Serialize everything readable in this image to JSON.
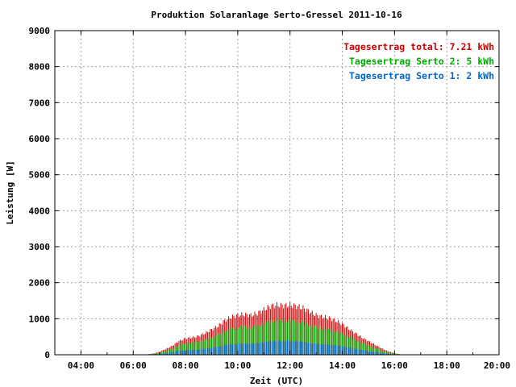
{
  "chart_data": {
    "type": "bar",
    "title": "Produktion Solaranlage Serto-Gressel 2011-10-16",
    "xlabel": "Zeit (UTC)",
    "ylabel": "Leistung [W]",
    "ylim": [
      0,
      9000
    ],
    "xlim": [
      3,
      20
    ],
    "grid": true,
    "legend_position": "top-right",
    "y_ticks": [
      "0",
      "1000",
      "2000",
      "3000",
      "4000",
      "5000",
      "6000",
      "7000",
      "8000",
      "9000"
    ],
    "x_ticks": [
      {
        "value": 4,
        "label": "04:00"
      },
      {
        "value": 6,
        "label": "06:00"
      },
      {
        "value": 8,
        "label": "08:00"
      },
      {
        "value": 10,
        "label": "10:00"
      },
      {
        "value": 12,
        "label": "12:00"
      },
      {
        "value": 14,
        "label": "14:00"
      },
      {
        "value": 16,
        "label": "16:00"
      },
      {
        "value": 18,
        "label": "18:00"
      },
      {
        "value": 20,
        "label": "20:00"
      }
    ],
    "legend": [
      {
        "label": "Tagesertrag total: 7.21 kWh",
        "color": "#cc0000"
      },
      {
        "label": "Tagesertrag Serto 2: 5 kWh",
        "color": "#00aa00"
      },
      {
        "label": "Tagesertrag Serto 1: 2 kWh",
        "color": "#0066cc"
      }
    ],
    "series": [
      {
        "name": "Tagesertrag total",
        "color": "#cc0000",
        "points": [
          [
            6.5,
            10
          ],
          [
            6.75,
            30
          ],
          [
            7.0,
            80
          ],
          [
            7.25,
            160
          ],
          [
            7.5,
            250
          ],
          [
            7.75,
            380
          ],
          [
            8.0,
            450
          ],
          [
            8.25,
            480
          ],
          [
            8.5,
            520
          ],
          [
            8.75,
            600
          ],
          [
            9.0,
            700
          ],
          [
            9.25,
            800
          ],
          [
            9.5,
            950
          ],
          [
            9.75,
            1050
          ],
          [
            10.0,
            1100
          ],
          [
            10.25,
            1120
          ],
          [
            10.5,
            1100
          ],
          [
            10.75,
            1150
          ],
          [
            11.0,
            1250
          ],
          [
            11.25,
            1350
          ],
          [
            11.5,
            1380
          ],
          [
            11.75,
            1370
          ],
          [
            12.0,
            1380
          ],
          [
            12.25,
            1350
          ],
          [
            12.5,
            1300
          ],
          [
            12.75,
            1200
          ],
          [
            13.0,
            1100
          ],
          [
            13.25,
            1050
          ],
          [
            13.5,
            1020
          ],
          [
            13.75,
            950
          ],
          [
            14.0,
            850
          ],
          [
            14.25,
            720
          ],
          [
            14.5,
            600
          ],
          [
            14.75,
            480
          ],
          [
            15.0,
            380
          ],
          [
            15.25,
            280
          ],
          [
            15.5,
            180
          ],
          [
            15.75,
            100
          ],
          [
            16.0,
            40
          ],
          [
            16.25,
            10
          ]
        ]
      },
      {
        "name": "Tagesertrag Serto 2",
        "color": "#00aa00",
        "points": [
          [
            6.5,
            8
          ],
          [
            6.75,
            22
          ],
          [
            7.0,
            55
          ],
          [
            7.25,
            110
          ],
          [
            7.5,
            170
          ],
          [
            7.75,
            260
          ],
          [
            8.0,
            310
          ],
          [
            8.25,
            330
          ],
          [
            8.5,
            360
          ],
          [
            8.75,
            410
          ],
          [
            9.0,
            480
          ],
          [
            9.25,
            550
          ],
          [
            9.5,
            650
          ],
          [
            9.75,
            720
          ],
          [
            10.0,
            760
          ],
          [
            10.25,
            770
          ],
          [
            10.5,
            760
          ],
          [
            10.75,
            790
          ],
          [
            11.0,
            860
          ],
          [
            11.25,
            930
          ],
          [
            11.5,
            950
          ],
          [
            11.75,
            940
          ],
          [
            12.0,
            950
          ],
          [
            12.25,
            930
          ],
          [
            12.5,
            890
          ],
          [
            12.75,
            820
          ],
          [
            13.0,
            760
          ],
          [
            13.25,
            720
          ],
          [
            13.5,
            700
          ],
          [
            13.75,
            650
          ],
          [
            14.0,
            580
          ],
          [
            14.25,
            500
          ],
          [
            14.5,
            410
          ],
          [
            14.75,
            330
          ],
          [
            15.0,
            260
          ],
          [
            15.25,
            190
          ],
          [
            15.5,
            120
          ],
          [
            15.75,
            70
          ],
          [
            16.0,
            28
          ],
          [
            16.25,
            7
          ]
        ]
      },
      {
        "name": "Tagesertrag Serto 1",
        "color": "#0066cc",
        "points": [
          [
            6.5,
            3
          ],
          [
            6.75,
            9
          ],
          [
            7.0,
            22
          ],
          [
            7.25,
            45
          ],
          [
            7.5,
            70
          ],
          [
            7.75,
            105
          ],
          [
            8.0,
            125
          ],
          [
            8.25,
            135
          ],
          [
            8.5,
            145
          ],
          [
            8.75,
            165
          ],
          [
            9.0,
            195
          ],
          [
            9.25,
            220
          ],
          [
            9.5,
            265
          ],
          [
            9.75,
            290
          ],
          [
            10.0,
            305
          ],
          [
            10.25,
            310
          ],
          [
            10.5,
            305
          ],
          [
            10.75,
            320
          ],
          [
            11.0,
            345
          ],
          [
            11.25,
            375
          ],
          [
            11.5,
            385
          ],
          [
            11.75,
            380
          ],
          [
            12.0,
            385
          ],
          [
            12.25,
            375
          ],
          [
            12.5,
            360
          ],
          [
            12.75,
            330
          ],
          [
            13.0,
            305
          ],
          [
            13.25,
            290
          ],
          [
            13.5,
            280
          ],
          [
            13.75,
            260
          ],
          [
            14.0,
            235
          ],
          [
            14.25,
            200
          ],
          [
            14.5,
            165
          ],
          [
            14.75,
            135
          ],
          [
            15.0,
            105
          ],
          [
            15.25,
            75
          ],
          [
            15.5,
            50
          ],
          [
            15.75,
            28
          ],
          [
            16.0,
            11
          ],
          [
            16.25,
            3
          ]
        ]
      }
    ]
  }
}
